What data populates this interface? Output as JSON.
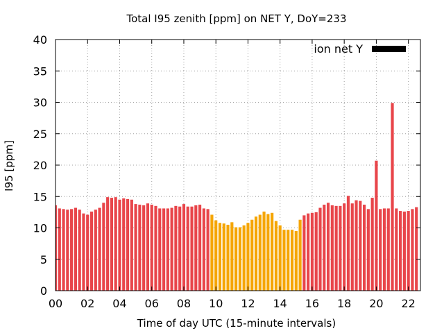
{
  "chart_data": {
    "type": "bar",
    "title": "Total I95 zenith [ppm] on NET Y, DoY=233",
    "xlabel": "Time of day UTC (15-minute intervals)",
    "ylabel": "I95 [ppm]",
    "ylim": [
      0,
      40
    ],
    "xlim": [
      0,
      22.75
    ],
    "yticks": [
      "0",
      "5",
      "10",
      "15",
      "20",
      "25",
      "30",
      "35",
      "40"
    ],
    "xticks": [
      "00",
      "02",
      "04",
      "06",
      "08",
      "10",
      "12",
      "14",
      "16",
      "18",
      "20",
      "22"
    ],
    "grid": true,
    "legend": {
      "label": "ion net Y",
      "placement": "top-right",
      "color": "#000000"
    },
    "colors": {
      "normal": "#e8454a",
      "highlight": "#f5a500"
    },
    "interval_hours": 0.25,
    "values": [
      13.6,
      13.1,
      13.0,
      12.9,
      13.0,
      13.2,
      12.9,
      12.3,
      12.1,
      12.6,
      12.9,
      13.2,
      14.0,
      14.9,
      14.8,
      14.9,
      14.5,
      14.7,
      14.6,
      14.5,
      13.8,
      13.7,
      13.6,
      13.9,
      13.7,
      13.5,
      13.1,
      13.1,
      13.1,
      13.2,
      13.5,
      13.4,
      13.8,
      13.4,
      13.4,
      13.6,
      13.7,
      13.1,
      13.0,
      12.1,
      11.2,
      10.8,
      10.7,
      10.5,
      10.9,
      10.1,
      10.1,
      10.4,
      10.8,
      11.3,
      11.8,
      12.1,
      12.6,
      12.2,
      12.4,
      11.1,
      10.4,
      9.7,
      9.7,
      9.7,
      9.5,
      11.3,
      12.0,
      12.3,
      12.4,
      12.5,
      13.2,
      13.7,
      14.0,
      13.6,
      13.5,
      13.5,
      13.9,
      15.1,
      13.9,
      14.4,
      14.3,
      13.7,
      13.0,
      14.8,
      20.7,
      13.0,
      13.1,
      13.1,
      29.9,
      13.1,
      12.7,
      12.6,
      12.7,
      13.0,
      13.3
    ],
    "highlight_range_hours": [
      9.75,
      15.5
    ]
  }
}
